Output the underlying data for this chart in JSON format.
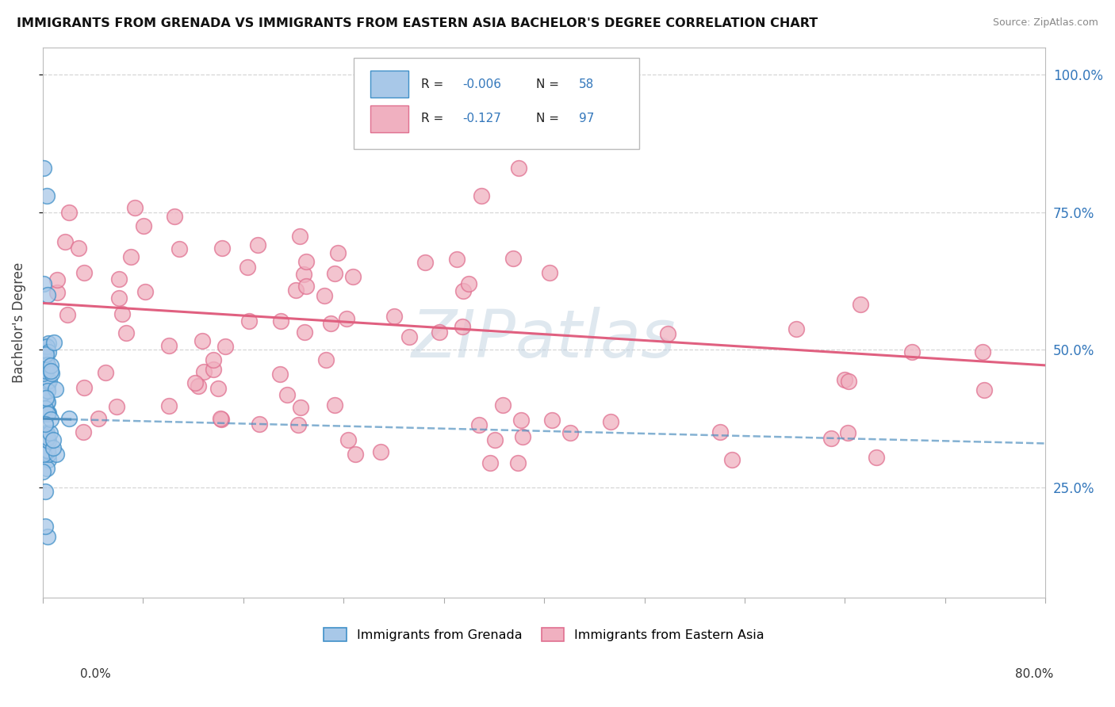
{
  "title": "IMMIGRANTS FROM GRENADA VS IMMIGRANTS FROM EASTERN ASIA BACHELOR'S DEGREE CORRELATION CHART",
  "source": "Source: ZipAtlas.com",
  "ylabel": "Bachelor's Degree",
  "right_yticklabels": [
    "25.0%",
    "50.0%",
    "75.0%",
    "100.0%"
  ],
  "right_ytick_vals": [
    0.25,
    0.5,
    0.75,
    1.0
  ],
  "watermark_text": "ZIPatlas",
  "legend_r1": "-0.006",
  "legend_n1": "58",
  "legend_r2": "-0.127",
  "legend_n2": "97",
  "color_blue_fill": "#a8c8e8",
  "color_blue_edge": "#4090c8",
  "color_pink_fill": "#f0b0c0",
  "color_pink_edge": "#e07090",
  "color_trend_blue": "#5090c0",
  "color_trend_pink": "#e06080",
  "color_grid": "#cccccc",
  "xlim": [
    0.0,
    0.8
  ],
  "ylim": [
    0.05,
    1.05
  ],
  "blue_trend_y0": 0.375,
  "blue_trend_y1": 0.33,
  "pink_trend_y0": 0.585,
  "pink_trend_y1": 0.472,
  "background": "#ffffff"
}
